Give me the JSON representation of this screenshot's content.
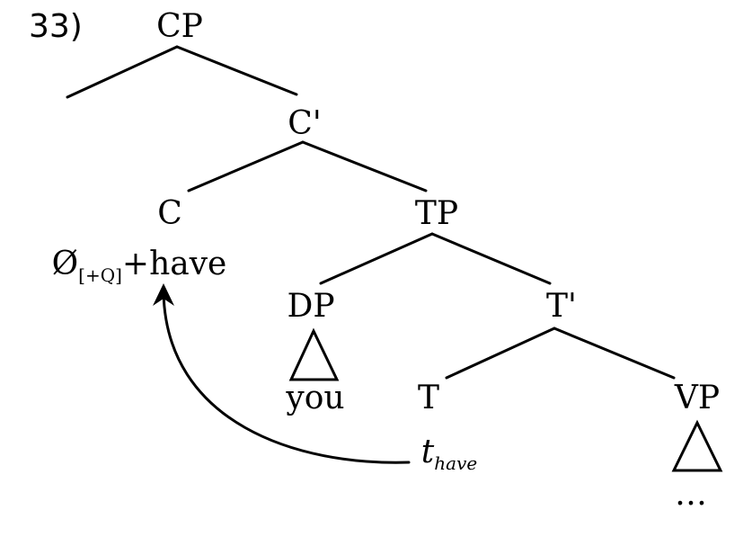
{
  "example_number": "33)",
  "nodes": {
    "cp": "CP",
    "c_bar": "C'",
    "c": "C",
    "tp": "TP",
    "dp": "DP",
    "t_bar": "T'",
    "t": "T",
    "vp": "VP"
  },
  "leaves": {
    "c_content": {
      "symbol": "Ø",
      "feature": "[+Q]",
      "word": "+have"
    },
    "dp_content": "you",
    "vp_content": "…"
  },
  "trace": {
    "base": "t",
    "subscript": "have"
  },
  "colors": {
    "ink": "#000000",
    "background": "#ffffff"
  }
}
